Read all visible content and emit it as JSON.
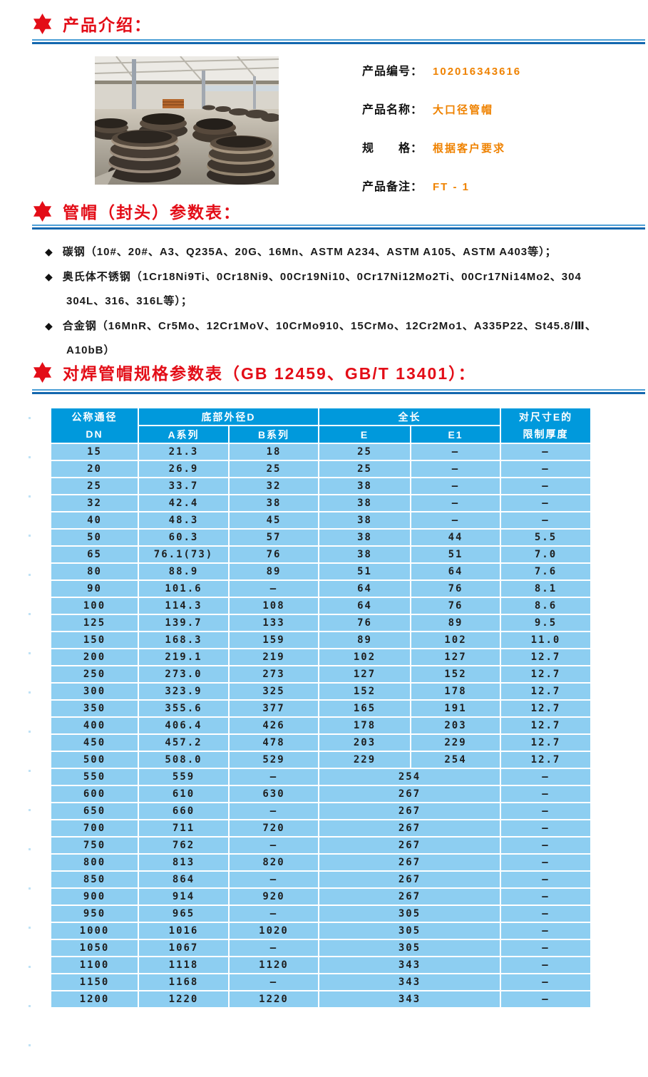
{
  "sections": {
    "intro": {
      "title": "产品介绍："
    },
    "params": {
      "title": "管帽（封头）参数表："
    },
    "spec": {
      "title": "对焊管帽规格参数表（GB 12459、GB/T 13401）："
    }
  },
  "product": {
    "fields": [
      {
        "label": "产品编号：",
        "value": "102016343616"
      },
      {
        "label": "产品名称：",
        "value": "大口径管帽"
      },
      {
        "label": "规　　格：",
        "value": "根据客户要求"
      },
      {
        "label": "产品备注：",
        "value": "FT - 1"
      }
    ]
  },
  "bullets": [
    {
      "lines": [
        "碳钢（10#、20#、A3、Q235A、20G、16Mn、ASTM A234、ASTM A105、ASTM A403等）；"
      ]
    },
    {
      "lines": [
        "奥氏体不锈钢（1Cr18Ni9Ti、0Cr18Ni9、00Cr19Ni10、0Cr17Ni12Mo2Ti、00Cr17Ni14Mo2、304",
        "304L、316、316L等）；"
      ]
    },
    {
      "lines": [
        "合金钢（16MnR、Cr5Mo、12Cr1MoV、10CrMo910、15CrMo、12Cr2Mo1、A335P22、St45.8/Ⅲ、",
        "A10bB）"
      ]
    }
  ],
  "spec_table": {
    "header": {
      "col_dn": [
        "公称通径",
        "DN"
      ],
      "col_d": "底部外径D",
      "col_a": "A系列",
      "col_b": "B系列",
      "col_len": "全长",
      "col_e": "E",
      "col_e1": "E1",
      "col_limit": [
        "对尺寸E的",
        "限制厚度"
      ]
    },
    "rows": [
      {
        "c": [
          "15",
          "21.3",
          "18",
          "25",
          "–",
          "–"
        ]
      },
      {
        "c": [
          "20",
          "26.9",
          "25",
          "25",
          "–",
          "–"
        ]
      },
      {
        "c": [
          "25",
          "33.7",
          "32",
          "38",
          "–",
          "–"
        ]
      },
      {
        "c": [
          "32",
          "42.4",
          "38",
          "38",
          "–",
          "–"
        ]
      },
      {
        "c": [
          "40",
          "48.3",
          "45",
          "38",
          "–",
          "–"
        ]
      },
      {
        "c": [
          "50",
          "60.3",
          "57",
          "38",
          "44",
          "5.5"
        ]
      },
      {
        "c": [
          "65",
          "76.1(73)",
          "76",
          "38",
          "51",
          "7.0"
        ]
      },
      {
        "c": [
          "80",
          "88.9",
          "89",
          "51",
          "64",
          "7.6"
        ]
      },
      {
        "c": [
          "90",
          "101.6",
          "–",
          "64",
          "76",
          "8.1"
        ]
      },
      {
        "c": [
          "100",
          "114.3",
          "108",
          "64",
          "76",
          "8.6"
        ]
      },
      {
        "c": [
          "125",
          "139.7",
          "133",
          "76",
          "89",
          "9.5"
        ]
      },
      {
        "c": [
          "150",
          "168.3",
          "159",
          "89",
          "102",
          "11.0"
        ]
      },
      {
        "c": [
          "200",
          "219.1",
          "219",
          "102",
          "127",
          "12.7"
        ]
      },
      {
        "c": [
          "250",
          "273.0",
          "273",
          "127",
          "152",
          "12.7"
        ]
      },
      {
        "c": [
          "300",
          "323.9",
          "325",
          "152",
          "178",
          "12.7"
        ]
      },
      {
        "c": [
          "350",
          "355.6",
          "377",
          "165",
          "191",
          "12.7"
        ]
      },
      {
        "c": [
          "400",
          "406.4",
          "426",
          "178",
          "203",
          "12.7"
        ]
      },
      {
        "c": [
          "450",
          "457.2",
          "478",
          "203",
          "229",
          "12.7"
        ]
      },
      {
        "c": [
          "500",
          "508.0",
          "529",
          "229",
          "254",
          "12.7"
        ]
      },
      {
        "c": [
          "550",
          "559",
          "–",
          "254",
          "–"
        ],
        "m": true
      },
      {
        "c": [
          "600",
          "610",
          "630",
          "267",
          "–"
        ],
        "m": true
      },
      {
        "c": [
          "650",
          "660",
          "–",
          "267",
          "–"
        ],
        "m": true
      },
      {
        "c": [
          "700",
          "711",
          "720",
          "267",
          "–"
        ],
        "m": true
      },
      {
        "c": [
          "750",
          "762",
          "–",
          "267",
          "–"
        ],
        "m": true
      },
      {
        "c": [
          "800",
          "813",
          "820",
          "267",
          "–"
        ],
        "m": true
      },
      {
        "c": [
          "850",
          "864",
          "–",
          "267",
          "–"
        ],
        "m": true
      },
      {
        "c": [
          "900",
          "914",
          "920",
          "267",
          "–"
        ],
        "m": true
      },
      {
        "c": [
          "950",
          "965",
          "–",
          "305",
          "–"
        ],
        "m": true
      },
      {
        "c": [
          "1000",
          "1016",
          "1020",
          "305",
          "–"
        ],
        "m": true
      },
      {
        "c": [
          "1050",
          "1067",
          "–",
          "305",
          "–"
        ],
        "m": true
      },
      {
        "c": [
          "1100",
          "1118",
          "1120",
          "343",
          "–"
        ],
        "m": true
      },
      {
        "c": [
          "1150",
          "1168",
          "–",
          "343",
          "–"
        ],
        "m": true
      },
      {
        "c": [
          "1200",
          "1220",
          "1220",
          "343",
          "–"
        ],
        "m": true
      }
    ]
  },
  "colors": {
    "accent_red": "#e30d17",
    "rule_blue_dark": "#1467ae",
    "rule_blue_light": "#4d9fd6",
    "table_header_blue": "#0099dc",
    "table_cell_blue": "#8dcef1",
    "value_orange": "#ef8200"
  }
}
